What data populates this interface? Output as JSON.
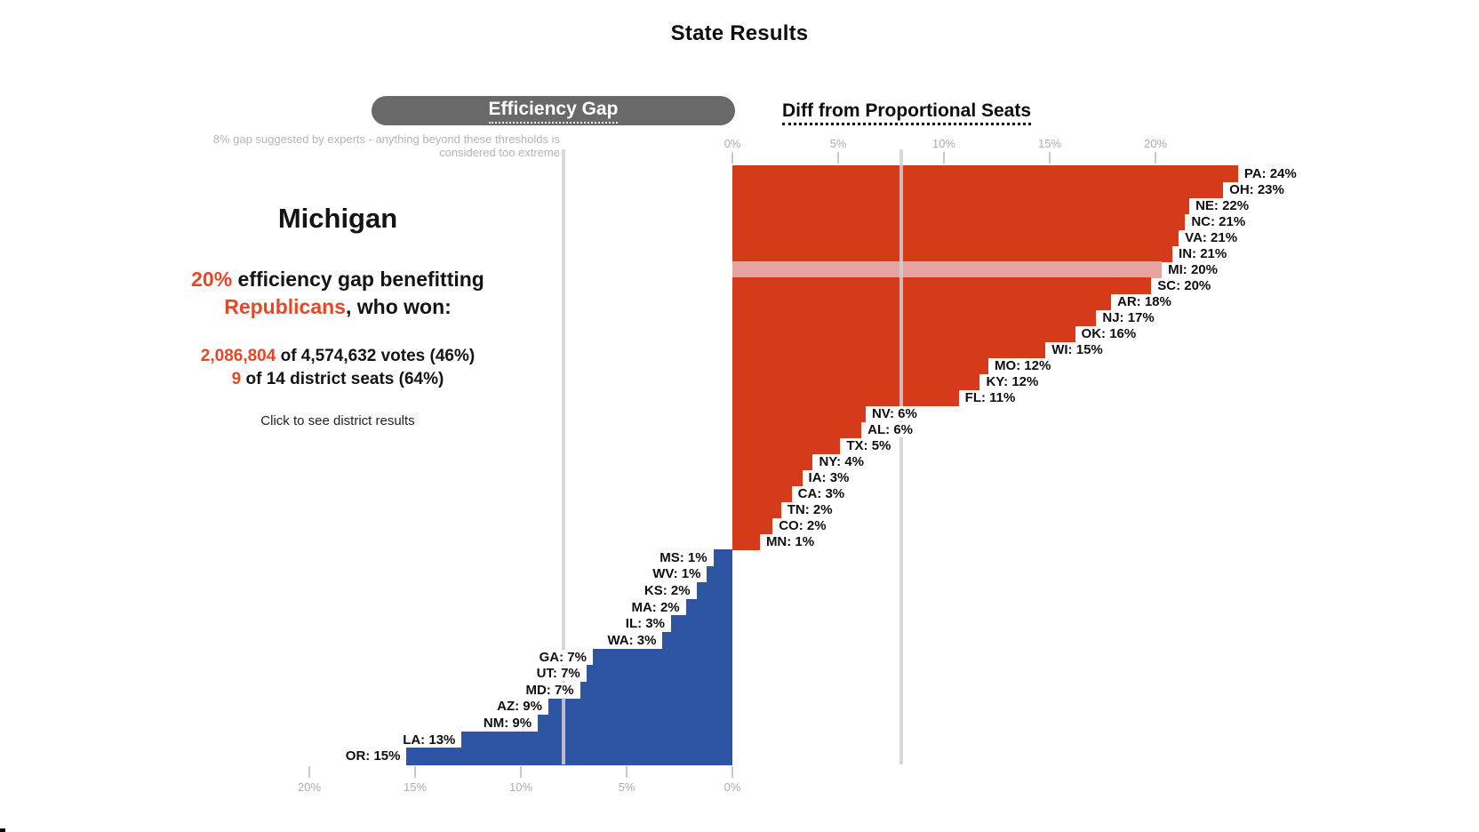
{
  "header": {
    "title": "State Results"
  },
  "tabs": [
    {
      "label": "Efficiency Gap",
      "active": true
    },
    {
      "label": "Diff from Proportional Seats",
      "active": false
    }
  ],
  "threshold_note": {
    "line1": "8% gap suggested by experts - anything beyond these thresholds is",
    "line2": "considered too extreme"
  },
  "info": {
    "state": "Michigan",
    "gap_pct": "20%",
    "gap_text": " efficiency gap benefitting",
    "party": "Republicans",
    "after_party": ", who won:",
    "votes_value": "2,086,804",
    "votes_rest": " of 4,574,632 votes (46%)",
    "seats_value": "9",
    "seats_rest": " of 14 district seats (64%)",
    "hint": "Click to see district results"
  },
  "colors": {
    "republican_bar": "#d53a1b",
    "democrat_bar": "#2e55a3",
    "highlight_bar": "#e7a3a0",
    "accent_text": "#e64727",
    "pill_gray": "#696969",
    "threshold_line": "#d0d0d0"
  },
  "chart_data": {
    "type": "bar",
    "orientation": "horizontal-diverging-step",
    "unit": "% efficiency gap",
    "title": "Efficiency Gap by state",
    "threshold_pct": 8,
    "highlighted_state": "MI",
    "axis_top": {
      "side": "republican-advantage",
      "ticks": [
        {
          "label": "0%",
          "pct": 0
        },
        {
          "label": "5%",
          "pct": 5
        },
        {
          "label": "10%",
          "pct": 10
        },
        {
          "label": "15%",
          "pct": 15
        },
        {
          "label": "20%",
          "pct": 20
        }
      ]
    },
    "axis_bottom": {
      "side": "democrat-advantage",
      "ticks": [
        {
          "label": "20%",
          "pct": 20
        },
        {
          "label": "15%",
          "pct": 15
        },
        {
          "label": "10%",
          "pct": 10
        },
        {
          "label": "5%",
          "pct": 5
        },
        {
          "label": "0%",
          "pct": 0
        }
      ]
    },
    "series": [
      {
        "name": "benefits-republicans",
        "direction": "right",
        "color_key": "republican_bar",
        "states": [
          {
            "abbr": "PA",
            "label": "PA: 24%",
            "pct": 24,
            "bar_pct": 23.9
          },
          {
            "abbr": "OH",
            "label": "OH: 23%",
            "pct": 23,
            "bar_pct": 23.2
          },
          {
            "abbr": "NE",
            "label": "NE: 22%",
            "pct": 22,
            "bar_pct": 21.6
          },
          {
            "abbr": "NC",
            "label": "NC: 21%",
            "pct": 21,
            "bar_pct": 21.4
          },
          {
            "abbr": "VA",
            "label": "VA: 21%",
            "pct": 21,
            "bar_pct": 21.1
          },
          {
            "abbr": "IN",
            "label": "IN: 21%",
            "pct": 21,
            "bar_pct": 20.8
          },
          {
            "abbr": "MI",
            "label": "MI: 20%",
            "pct": 20,
            "bar_pct": 20.3
          },
          {
            "abbr": "SC",
            "label": "SC: 20%",
            "pct": 20,
            "bar_pct": 19.8
          },
          {
            "abbr": "AR",
            "label": "AR: 18%",
            "pct": 18,
            "bar_pct": 17.9
          },
          {
            "abbr": "NJ",
            "label": "NJ: 17%",
            "pct": 17,
            "bar_pct": 17.2
          },
          {
            "abbr": "OK",
            "label": "OK: 16%",
            "pct": 16,
            "bar_pct": 16.2
          },
          {
            "abbr": "WI",
            "label": "WI: 15%",
            "pct": 15,
            "bar_pct": 14.8
          },
          {
            "abbr": "MO",
            "label": "MO: 12%",
            "pct": 12,
            "bar_pct": 12.1
          },
          {
            "abbr": "KY",
            "label": "KY: 12%",
            "pct": 12,
            "bar_pct": 11.7
          },
          {
            "abbr": "FL",
            "label": "FL: 11%",
            "pct": 11,
            "bar_pct": 10.7
          },
          {
            "abbr": "NV",
            "label": "NV: 6%",
            "pct": 6,
            "bar_pct": 6.3
          },
          {
            "abbr": "AL",
            "label": "AL: 6%",
            "pct": 6,
            "bar_pct": 6.1
          },
          {
            "abbr": "TX",
            "label": "TX: 5%",
            "pct": 5,
            "bar_pct": 5.1
          },
          {
            "abbr": "NY",
            "label": "NY: 4%",
            "pct": 4,
            "bar_pct": 3.8
          },
          {
            "abbr": "IA",
            "label": "IA: 3%",
            "pct": 3,
            "bar_pct": 3.3
          },
          {
            "abbr": "CA",
            "label": "CA: 3%",
            "pct": 3,
            "bar_pct": 2.8
          },
          {
            "abbr": "TN",
            "label": "TN: 2%",
            "pct": 2,
            "bar_pct": 2.3
          },
          {
            "abbr": "CO",
            "label": "CO: 2%",
            "pct": 2,
            "bar_pct": 1.9
          },
          {
            "abbr": "MN",
            "label": "MN: 1%",
            "pct": 1,
            "bar_pct": 1.3
          }
        ]
      },
      {
        "name": "benefits-democrats",
        "direction": "left",
        "color_key": "democrat_bar",
        "states": [
          {
            "abbr": "MS",
            "label": "MS: 1%",
            "pct": 1,
            "bar_pct": 0.9
          },
          {
            "abbr": "WV",
            "label": "WV: 1%",
            "pct": 1,
            "bar_pct": 1.2
          },
          {
            "abbr": "KS",
            "label": "KS: 2%",
            "pct": 2,
            "bar_pct": 1.7
          },
          {
            "abbr": "MA",
            "label": "MA: 2%",
            "pct": 2,
            "bar_pct": 2.2
          },
          {
            "abbr": "IL",
            "label": "IL: 3%",
            "pct": 3,
            "bar_pct": 2.9
          },
          {
            "abbr": "WA",
            "label": "WA: 3%",
            "pct": 3,
            "bar_pct": 3.3
          },
          {
            "abbr": "GA",
            "label": "GA: 7%",
            "pct": 7,
            "bar_pct": 6.6
          },
          {
            "abbr": "UT",
            "label": "UT: 7%",
            "pct": 7,
            "bar_pct": 6.9
          },
          {
            "abbr": "MD",
            "label": "MD: 7%",
            "pct": 7,
            "bar_pct": 7.2
          },
          {
            "abbr": "AZ",
            "label": "AZ: 9%",
            "pct": 9,
            "bar_pct": 8.7
          },
          {
            "abbr": "NM",
            "label": "NM: 9%",
            "pct": 9,
            "bar_pct": 9.2
          },
          {
            "abbr": "LA",
            "label": "LA: 13%",
            "pct": 13,
            "bar_pct": 12.8
          },
          {
            "abbr": "OR",
            "label": "OR: 15%",
            "pct": 15,
            "bar_pct": 15.4
          }
        ]
      }
    ]
  }
}
